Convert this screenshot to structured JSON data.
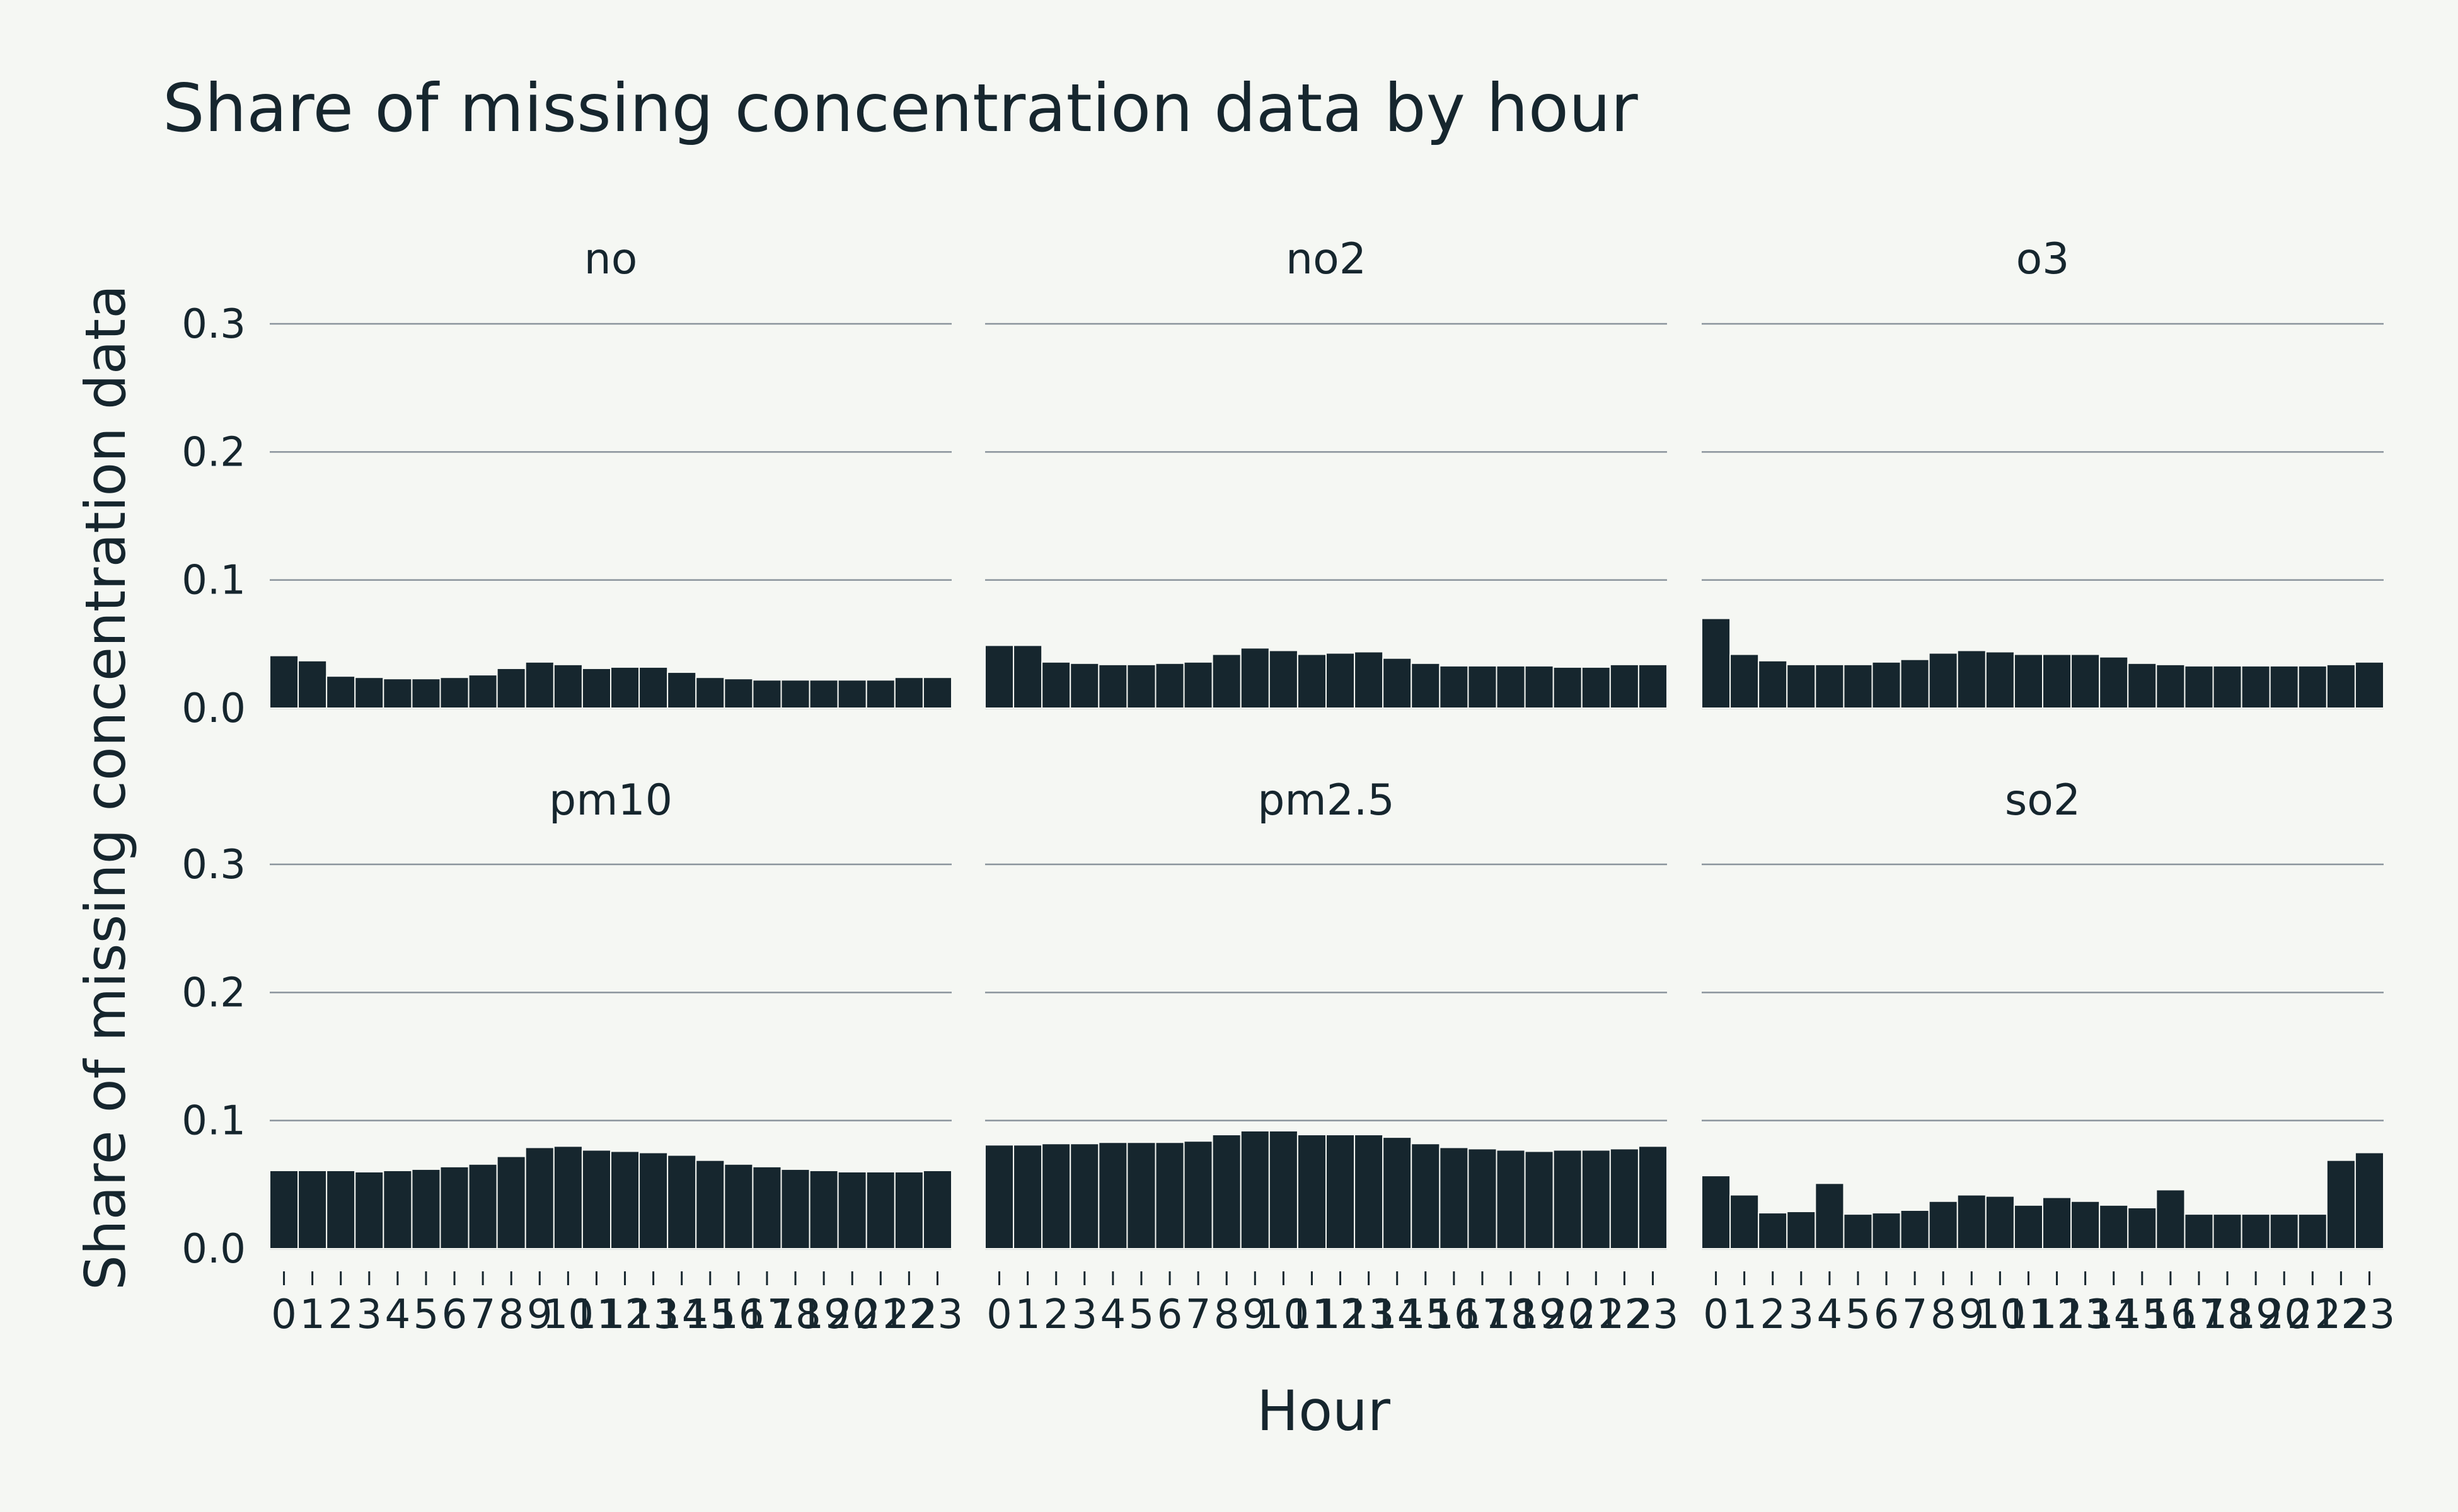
{
  "chart_data": {
    "type": "bar",
    "title": "Share of missing concentration data by hour",
    "xlabel": "Hour",
    "ylabel": "Share of missing concentration data",
    "ylim": [
      0,
      0.3
    ],
    "yticks": [
      "0.0",
      "0.1",
      "0.2",
      "0.3"
    ],
    "grid": true,
    "categories": [
      "0",
      "1",
      "2",
      "3",
      "4",
      "5",
      "6",
      "7",
      "8",
      "9",
      "10",
      "11",
      "12",
      "13",
      "14",
      "15",
      "16",
      "17",
      "18",
      "19",
      "20",
      "21",
      "22",
      "23"
    ],
    "panels": [
      {
        "name": "no",
        "values": [
          0.041,
          0.037,
          0.025,
          0.024,
          0.023,
          0.023,
          0.024,
          0.026,
          0.031,
          0.036,
          0.034,
          0.031,
          0.032,
          0.032,
          0.028,
          0.024,
          0.023,
          0.022,
          0.022,
          0.022,
          0.022,
          0.022,
          0.024,
          0.024
        ]
      },
      {
        "name": "no2",
        "values": [
          0.049,
          0.049,
          0.036,
          0.035,
          0.034,
          0.034,
          0.035,
          0.036,
          0.042,
          0.047,
          0.045,
          0.042,
          0.043,
          0.044,
          0.039,
          0.035,
          0.033,
          0.033,
          0.033,
          0.033,
          0.032,
          0.032,
          0.034,
          0.034
        ]
      },
      {
        "name": "o3",
        "values": [
          0.07,
          0.042,
          0.037,
          0.034,
          0.034,
          0.034,
          0.036,
          0.038,
          0.043,
          0.045,
          0.044,
          0.042,
          0.042,
          0.042,
          0.04,
          0.035,
          0.034,
          0.033,
          0.033,
          0.033,
          0.033,
          0.033,
          0.034,
          0.036
        ]
      },
      {
        "name": "pm10",
        "values": [
          0.061,
          0.061,
          0.061,
          0.06,
          0.061,
          0.062,
          0.064,
          0.066,
          0.072,
          0.079,
          0.08,
          0.077,
          0.076,
          0.075,
          0.073,
          0.069,
          0.066,
          0.064,
          0.062,
          0.061,
          0.06,
          0.06,
          0.06,
          0.061
        ]
      },
      {
        "name": "pm2.5",
        "values": [
          0.081,
          0.081,
          0.082,
          0.082,
          0.083,
          0.083,
          0.083,
          0.084,
          0.089,
          0.092,
          0.092,
          0.089,
          0.089,
          0.089,
          0.087,
          0.082,
          0.079,
          0.078,
          0.077,
          0.076,
          0.077,
          0.077,
          0.078,
          0.08
        ]
      },
      {
        "name": "so2",
        "values": [
          0.057,
          0.042,
          0.028,
          0.029,
          0.051,
          0.027,
          0.028,
          0.03,
          0.037,
          0.042,
          0.041,
          0.034,
          0.04,
          0.037,
          0.034,
          0.032,
          0.046,
          0.027,
          0.027,
          0.027,
          0.027,
          0.027,
          0.069,
          0.075
        ]
      }
    ]
  }
}
